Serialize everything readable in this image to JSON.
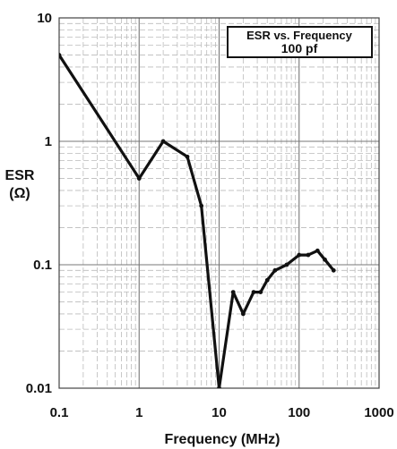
{
  "chart_data": {
    "type": "line",
    "title": "ESR vs. Frequency",
    "subtitle": "100 pf",
    "xlabel": "Frequency (MHz)",
    "ylabel": [
      "ESR",
      "(Ω)"
    ],
    "x_scale": "log",
    "y_scale": "log",
    "xlim": [
      0.1,
      1000
    ],
    "ylim": [
      0.01,
      10
    ],
    "grid": true,
    "x_ticks": [
      {
        "value": 0.1,
        "label": "0.1"
      },
      {
        "value": 1,
        "label": "1"
      },
      {
        "value": 10,
        "label": "10"
      },
      {
        "value": 100,
        "label": "100"
      },
      {
        "value": 1000,
        "label": "1000"
      }
    ],
    "y_ticks": [
      {
        "value": 10,
        "label": "10"
      },
      {
        "value": 1,
        "label": "1"
      },
      {
        "value": 0.1,
        "label": "0.1"
      },
      {
        "value": 0.01,
        "label": "0.01"
      }
    ],
    "series": [
      {
        "color": "#111111",
        "points": [
          {
            "x": 0.1,
            "y": 5.0
          },
          {
            "x": 1.0,
            "y": 0.5
          },
          {
            "x": 2.0,
            "y": 1.0
          },
          {
            "x": 4.0,
            "y": 0.75
          },
          {
            "x": 6.0,
            "y": 0.3
          },
          {
            "x": 10.0,
            "y": 0.01
          },
          {
            "x": 15.0,
            "y": 0.06
          },
          {
            "x": 20.0,
            "y": 0.04
          },
          {
            "x": 27.0,
            "y": 0.06
          },
          {
            "x": 33.0,
            "y": 0.06
          },
          {
            "x": 40.0,
            "y": 0.075
          },
          {
            "x": 50.0,
            "y": 0.09
          },
          {
            "x": 70.0,
            "y": 0.1
          },
          {
            "x": 100.0,
            "y": 0.12
          },
          {
            "x": 130.0,
            "y": 0.12
          },
          {
            "x": 170.0,
            "y": 0.13
          },
          {
            "x": 210.0,
            "y": 0.11
          },
          {
            "x": 270.0,
            "y": 0.09
          }
        ]
      }
    ]
  }
}
